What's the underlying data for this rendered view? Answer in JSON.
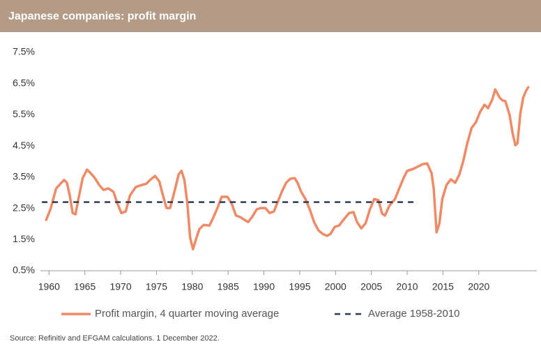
{
  "chart_data": {
    "type": "line",
    "title": "Japanese companies: profit margin",
    "source": "Source: Refinitiv and EFGAM calculations. 1 December 2022.",
    "xlim": [
      1958.8,
      2028.1
    ],
    "xticks": [
      1960,
      1965,
      1970,
      1975,
      1980,
      1985,
      1990,
      1995,
      2000,
      2005,
      2010,
      2015,
      2020
    ],
    "ylim": [
      0.5,
      7.5
    ],
    "yticks": [
      {
        "value": 0.5,
        "label": "0.5%"
      },
      {
        "value": 1.5,
        "label": "1.5%"
      },
      {
        "value": 2.5,
        "label": "2.5%"
      },
      {
        "value": 3.5,
        "label": "3.5%"
      },
      {
        "value": 4.5,
        "label": "4.5%"
      },
      {
        "value": 5.5,
        "label": "5.5%"
      },
      {
        "value": 6.5,
        "label": "6.5%"
      },
      {
        "value": 7.5,
        "label": "7.5%"
      }
    ],
    "grid": false,
    "legend": "bottom",
    "series": [
      {
        "name": "Profit margin, 4 quarter moving average",
        "color": "#f08a66",
        "style": "solid",
        "x": [
          1959.6,
          1960.2,
          1961.0,
          1961.6,
          1962.1,
          1962.5,
          1962.9,
          1963.3,
          1963.7,
          1964.1,
          1964.7,
          1965.3,
          1965.8,
          1966.4,
          1967.0,
          1967.6,
          1968.3,
          1969.0,
          1969.5,
          1970.1,
          1970.7,
          1971.3,
          1972.1,
          1972.7,
          1973.6,
          1974.1,
          1974.8,
          1975.4,
          1975.8,
          1976.4,
          1976.9,
          1977.5,
          1978.1,
          1978.5,
          1978.9,
          1979.3,
          1979.7,
          1980.1,
          1980.6,
          1981.0,
          1981.6,
          1982.4,
          1983.0,
          1983.6,
          1984.1,
          1984.9,
          1985.5,
          1986.1,
          1986.7,
          1987.3,
          1987.8,
          1988.4,
          1989.0,
          1989.6,
          1990.2,
          1990.8,
          1991.4,
          1991.9,
          1992.5,
          1993.1,
          1993.7,
          1994.3,
          1994.7,
          1995.2,
          1995.8,
          1996.4,
          1997.0,
          1997.6,
          1998.2,
          1998.8,
          1999.3,
          1999.9,
          2000.5,
          2001.1,
          2001.9,
          2002.5,
          2003.0,
          2003.6,
          2004.2,
          2004.8,
          2005.4,
          2006.0,
          2006.5,
          2006.9,
          2007.5,
          2008.3,
          2008.9,
          2009.5,
          2010.0,
          2010.8,
          2011.6,
          2012.2,
          2012.8,
          2013.4,
          2013.7,
          2014.1,
          2014.5,
          2014.9,
          2015.5,
          2016.1,
          2016.7,
          2017.3,
          2017.8,
          2018.4,
          2019.0,
          2019.6,
          2020.2,
          2020.8,
          2021.3,
          2021.9,
          2022.3,
          2022.9,
          2023.3,
          2023.7,
          2024.3,
          2024.7,
          2025.1,
          2025.4,
          2025.8,
          2026.2,
          2026.6,
          2026.9
        ],
        "values": [
          2.13,
          2.47,
          3.14,
          3.29,
          3.41,
          3.32,
          2.91,
          2.35,
          2.31,
          2.8,
          3.47,
          3.74,
          3.63,
          3.47,
          3.25,
          3.09,
          3.14,
          3.03,
          2.69,
          2.35,
          2.4,
          2.91,
          3.18,
          3.23,
          3.29,
          3.41,
          3.54,
          3.36,
          3.0,
          2.51,
          2.51,
          3.03,
          3.59,
          3.7,
          3.41,
          2.69,
          1.57,
          1.19,
          1.57,
          1.84,
          1.97,
          1.95,
          2.24,
          2.56,
          2.87,
          2.87,
          2.65,
          2.27,
          2.22,
          2.13,
          2.06,
          2.24,
          2.47,
          2.51,
          2.51,
          2.35,
          2.4,
          2.69,
          3.03,
          3.32,
          3.45,
          3.47,
          3.32,
          3.03,
          2.8,
          2.47,
          2.06,
          1.8,
          1.68,
          1.62,
          1.68,
          1.91,
          1.95,
          2.13,
          2.35,
          2.38,
          2.06,
          1.86,
          2.02,
          2.47,
          2.8,
          2.76,
          2.33,
          2.27,
          2.58,
          2.8,
          3.14,
          3.47,
          3.7,
          3.76,
          3.85,
          3.92,
          3.94,
          3.63,
          3.14,
          1.73,
          2.02,
          2.8,
          3.25,
          3.43,
          3.32,
          3.59,
          3.99,
          4.59,
          5.08,
          5.26,
          5.6,
          5.82,
          5.71,
          6.0,
          6.31,
          6.05,
          5.96,
          5.94,
          5.49,
          4.93,
          4.52,
          4.59,
          5.55,
          6.05,
          6.27,
          6.38
        ]
      },
      {
        "name": "Average 1958-2010",
        "color": "#2b3a55",
        "style": "dashed",
        "x": [
          1959.0,
          2011.0
        ],
        "values": [
          2.7,
          2.7
        ]
      }
    ]
  }
}
